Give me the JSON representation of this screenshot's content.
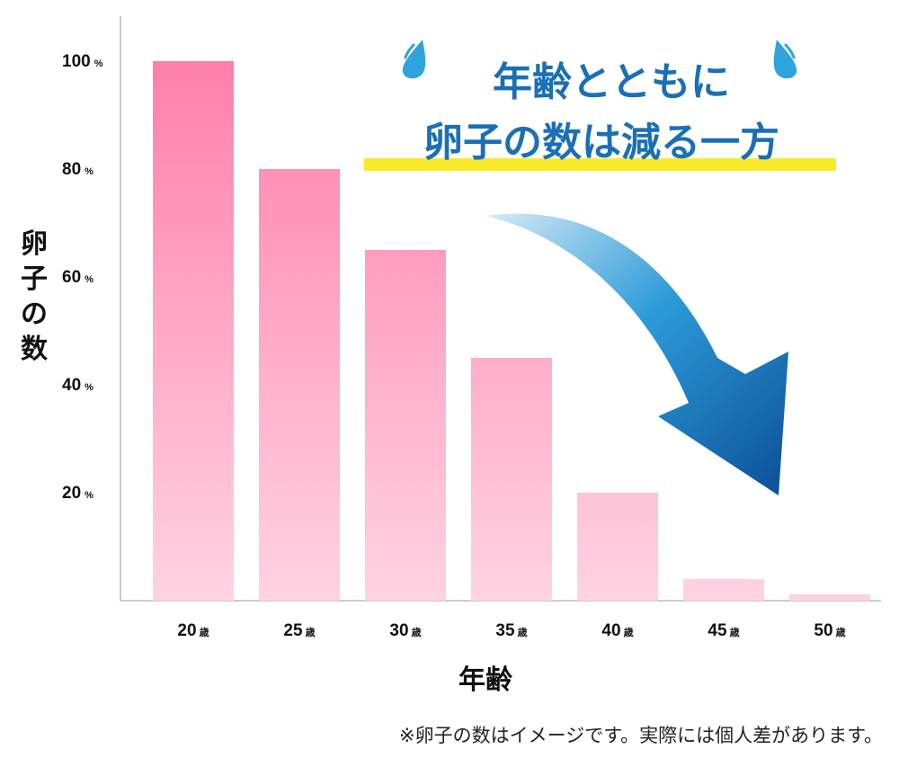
{
  "chart_data": {
    "type": "bar",
    "categories": [
      "20",
      "25",
      "30",
      "35",
      "40",
      "45",
      "50"
    ],
    "category_unit": "歳",
    "values": [
      100,
      80,
      65,
      45,
      20,
      4,
      1.2
    ],
    "ylim": [
      0,
      100
    ],
    "yticks": [
      20,
      40,
      60,
      80,
      100
    ],
    "ytick_unit": "%",
    "ylabel": "卵子の数",
    "xlabel": "年齢",
    "grid": false,
    "bar_gradient": [
      "#ff7fab",
      "#ffd3e2"
    ]
  },
  "headline": {
    "line1": "年齢とともに",
    "line2": "卵子の数は減る一方",
    "color": "#1a6fb6",
    "highlight_color": "#fbe92b"
  },
  "footnote": "※卵子の数はイメージです。実際には個人差があります。",
  "icons": [
    "sweat-drop-icon",
    "sweat-drop-icon",
    "down-arrow-icon"
  ]
}
